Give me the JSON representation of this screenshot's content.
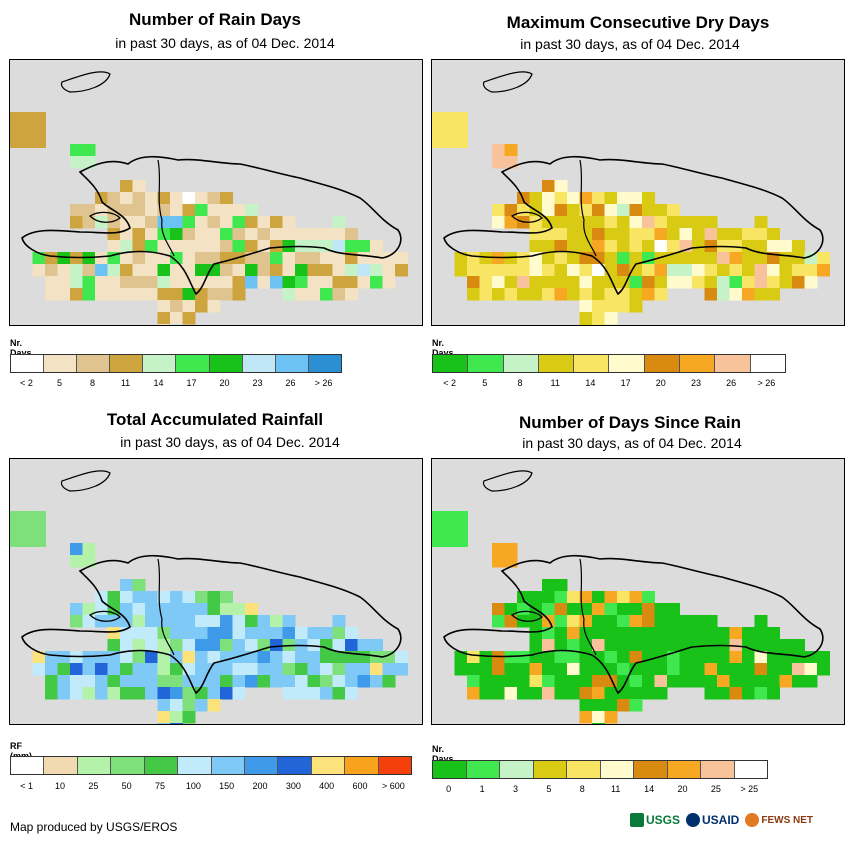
{
  "panels": [
    {
      "title": "Number of Rain Days",
      "subtitle": "in past 30 days, as of 04 Dec. 2014",
      "legend_title": "Nr. Days",
      "legend_colors": [
        "#ffffff",
        "#f3e2c4",
        "#e0c48f",
        "#cda43d",
        "#c5f2c7",
        "#3ee84e",
        "#19c219",
        "#bfe7f6",
        "#6cc3f3",
        "#2b8fd3"
      ],
      "legend_labels": [
        "< 2",
        "5",
        "8",
        "11",
        "14",
        "17",
        "20",
        "23",
        "26",
        "> 26"
      ],
      "cell_palette": [
        "#f3e2c4",
        "#e0c48f",
        "#cda43d",
        "#c5f2c7",
        "#3ee84e",
        "#19c219",
        "#bfe7f6",
        "#6cc3f3",
        "#ffffff"
      ]
    },
    {
      "title": "Maximum Consecutive Dry Days",
      "subtitle": "in past 30 days, as of 04 Dec. 2014",
      "legend_title": "Nr. Days",
      "legend_colors": [
        "#19c219",
        "#3ee84e",
        "#c5f2c7",
        "#d9cb14",
        "#f9e564",
        "#fffbcc",
        "#d98a10",
        "#f7a823",
        "#f8c39a",
        "#ffffff"
      ],
      "legend_labels": [
        "< 2",
        "5",
        "8",
        "11",
        "14",
        "17",
        "20",
        "23",
        "26",
        "> 26"
      ],
      "cell_palette": [
        "#d9cb14",
        "#f9e564",
        "#fffbcc",
        "#d98a10",
        "#f7a823",
        "#f8c39a",
        "#c5f2c7",
        "#3ee84e",
        "#ffffff"
      ]
    },
    {
      "title": "Total Accumulated Rainfall",
      "subtitle": "in past 30 days, as of 04 Dec. 2014",
      "legend_title": "RF (mm)",
      "legend_colors": [
        "#ffffff",
        "#f1d9b2",
        "#b4f2a9",
        "#7ee07b",
        "#43c946",
        "#c1eafa",
        "#7ec9f6",
        "#3f9ae9",
        "#2165d9",
        "#fce27a",
        "#f9a21b",
        "#f5400c"
      ],
      "legend_labels": [
        "< 1",
        "10",
        "25",
        "50",
        "75",
        "100",
        "150",
        "200",
        "300",
        "400",
        "600",
        "> 600"
      ],
      "cell_palette": [
        "#7ec9f6",
        "#c1eafa",
        "#7ee07b",
        "#43c946",
        "#b4f2a9",
        "#3f9ae9",
        "#2165d9",
        "#fce27a",
        "#7ec9f6"
      ]
    },
    {
      "title": "Number of Days Since Rain",
      "subtitle": "in past 30 days, as of 04 Dec. 2014",
      "legend_title": "Nr. Days",
      "legend_colors": [
        "#19c219",
        "#3ee84e",
        "#c5f2c7",
        "#d9cb14",
        "#f9e564",
        "#fffbcc",
        "#d98a10",
        "#f7a823",
        "#f8c39a",
        "#ffffff"
      ],
      "legend_labels": [
        "0",
        "1",
        "3",
        "5",
        "8",
        "11",
        "14",
        "20",
        "25",
        "> 25"
      ],
      "cell_palette": [
        "#19c219",
        "#19c219",
        "#3ee84e",
        "#f7a823",
        "#d98a10",
        "#f8c39a",
        "#f9e564",
        "#fffbcc",
        "#19c219"
      ]
    }
  ],
  "credit": "Map produced by USGS/EROS",
  "logos": [
    "USGS",
    "USAID",
    "FEWS NET"
  ]
}
